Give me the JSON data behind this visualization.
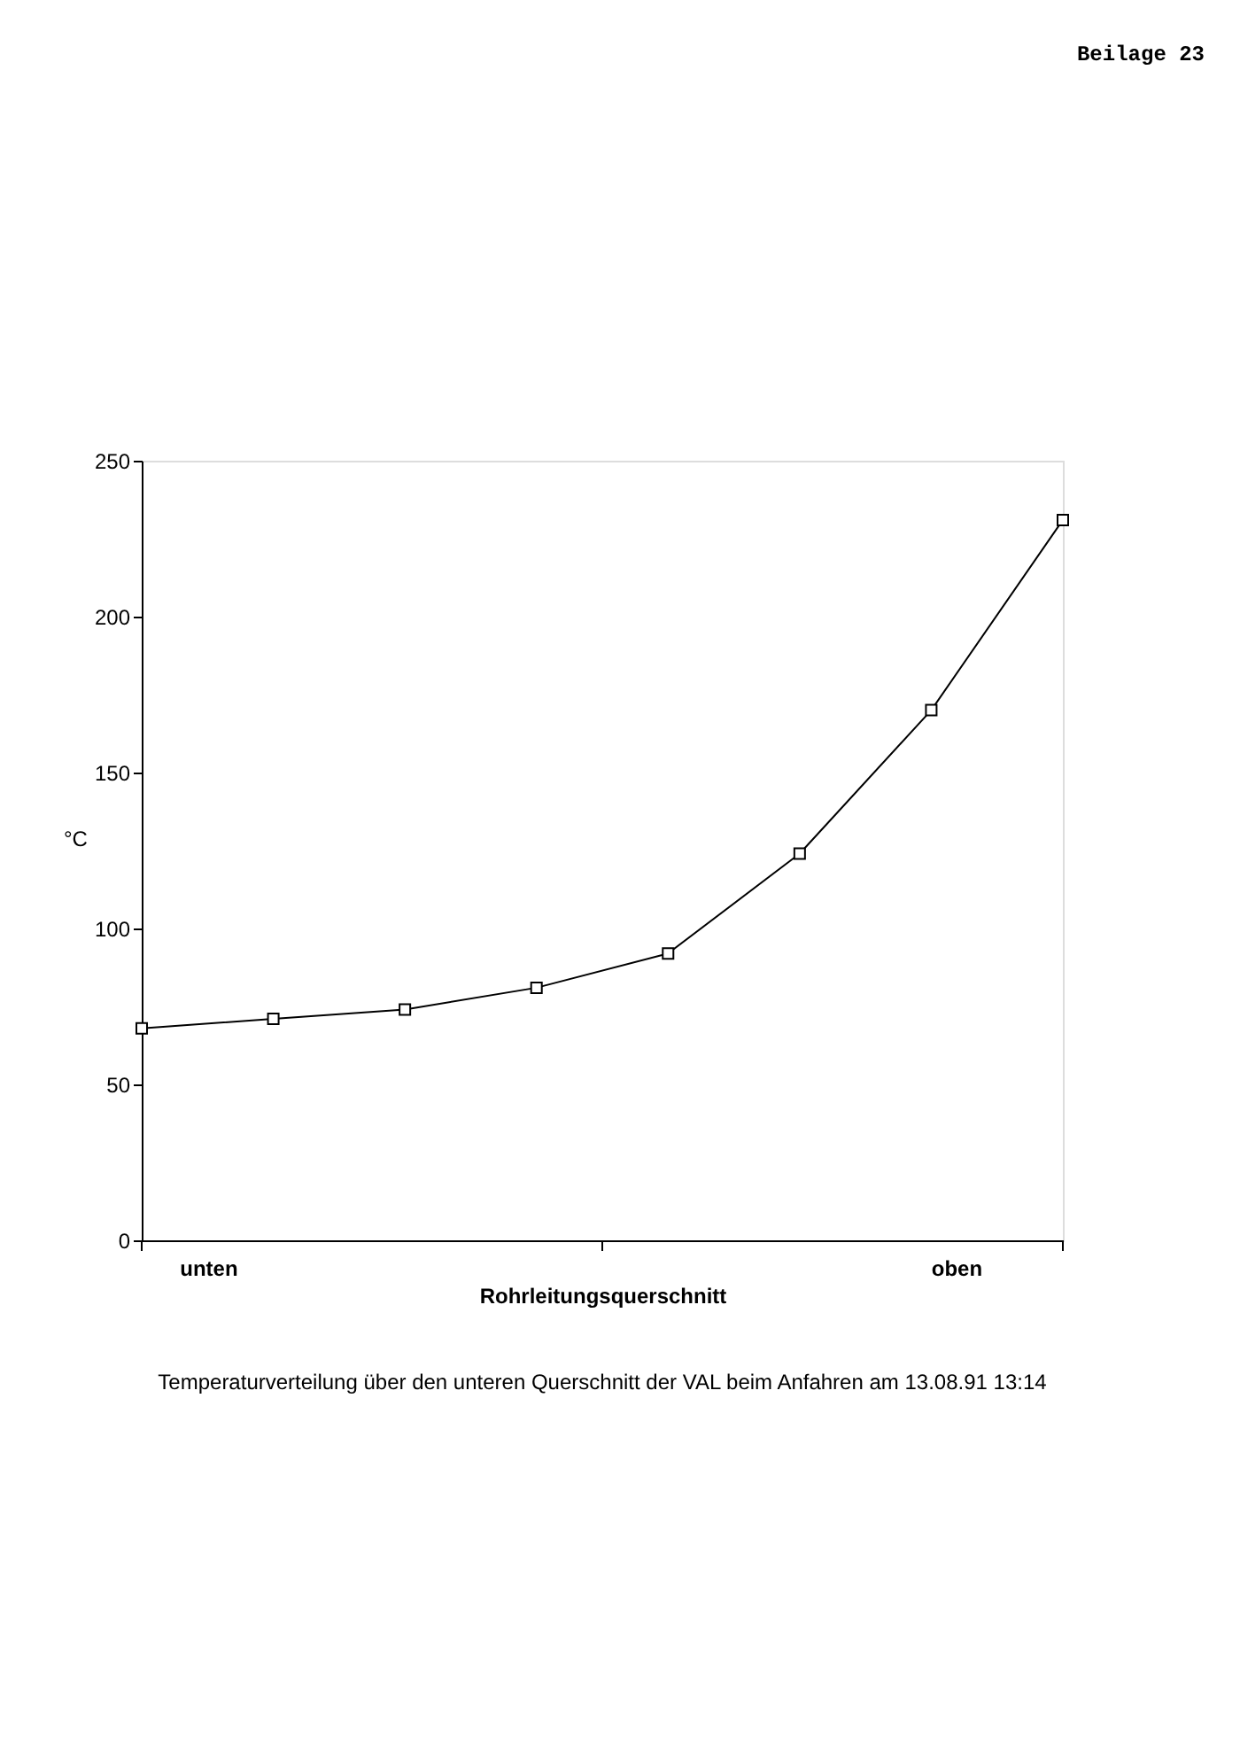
{
  "chart_data": {
    "type": "line",
    "title": "Temperaturverteilung über den unteren Querschnitt der VAL beim Anfahren am 13.08.91 13:14",
    "xlabel": "Rohrleitungsquerschnitt",
    "ylabel": "°C",
    "annotations": [
      "unten",
      "oben",
      "Beilage 23"
    ],
    "categories": [
      null,
      null,
      null,
      null,
      null,
      null,
      null,
      null
    ],
    "series": [
      {
        "color": "#000000",
        "values": [
          68,
          71,
          74,
          81,
          92,
          124,
          170,
          231
        ]
      }
    ],
    "ylim": [
      0,
      250
    ],
    "yticks": [
      0,
      50,
      100,
      150,
      200,
      250
    ],
    "marker": "square",
    "line_style": "solid"
  }
}
